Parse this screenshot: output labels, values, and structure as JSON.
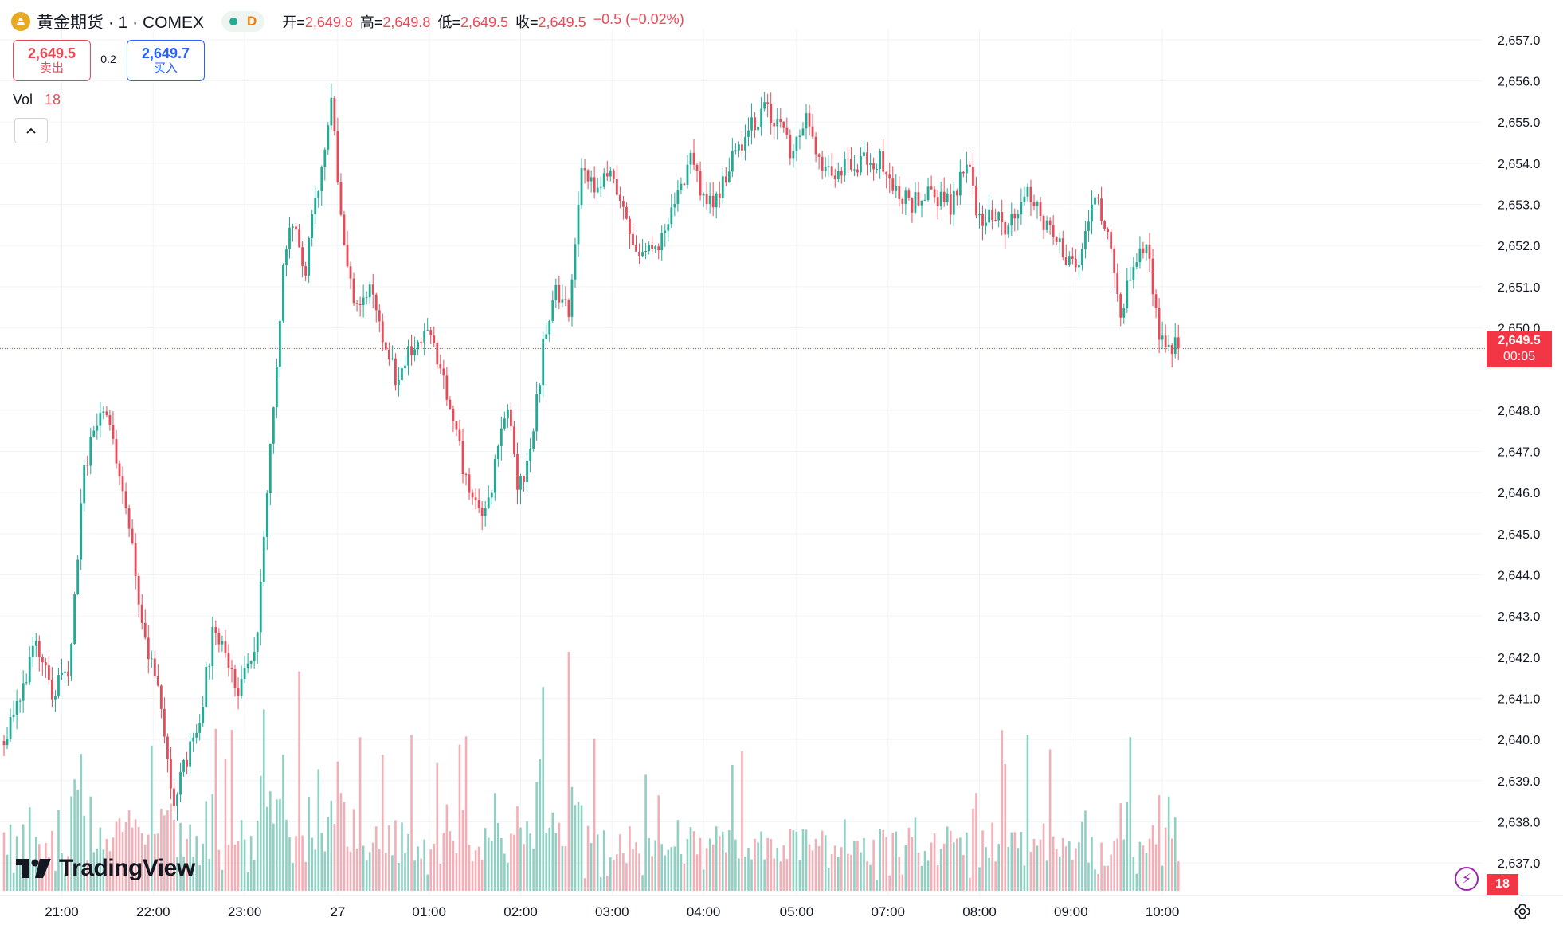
{
  "header": {
    "symbol_title": "黄金期货 · 1 · COMEX",
    "delay_badge": "D",
    "ohlc": [
      {
        "k": "开=",
        "v": "2,649.8"
      },
      {
        "k": "高=",
        "v": "2,649.8"
      },
      {
        "k": "低=",
        "v": "2,649.5"
      },
      {
        "k": "收=",
        "v": "2,649.5"
      }
    ],
    "change": "−0.5 (−0.02%)"
  },
  "trade": {
    "sell_price": "2,649.5",
    "sell_label": "卖出",
    "spread": "0.2",
    "buy_price": "2,649.7",
    "buy_label": "买入"
  },
  "volume": {
    "label": "Vol",
    "value": "18"
  },
  "logo": "TradingView",
  "last_price": {
    "price": "2,649.5",
    "countdown": "00:05"
  },
  "colors": {
    "up": "#22ab94",
    "down": "#e84a57",
    "volume_up": "#8fd0c3",
    "volume_down": "#f4aeb5",
    "grid": "#f0f3fa"
  },
  "chart_data": {
    "type": "candlestick",
    "title": "",
    "y_ticks": [
      "2,657.0",
      "2,656.0",
      "2,655.0",
      "2,654.0",
      "2,653.0",
      "2,652.0",
      "2,651.0",
      "2,650.0",
      "2,648.0",
      "2,647.0",
      "2,646.0",
      "2,645.0",
      "2,644.0",
      "2,643.0",
      "2,642.0",
      "2,641.0",
      "2,640.0",
      "2,639.0",
      "2,638.0",
      "2,637.0"
    ],
    "x_ticks": [
      "21:00",
      "22:00",
      "23:00",
      "27",
      "01:00",
      "02:00",
      "03:00",
      "04:00",
      "05:00",
      "07:00",
      "08:00",
      "09:00",
      "10:00"
    ],
    "ylim": [
      2636.75,
      2657.25
    ],
    "grid": true,
    "close_path": [
      [
        0,
        2640.0
      ],
      [
        4,
        2641.0
      ],
      [
        10,
        2642.2
      ],
      [
        15,
        2641.2
      ],
      [
        20,
        2641.5
      ],
      [
        25,
        2646.5
      ],
      [
        30,
        2648.2
      ],
      [
        34,
        2647.2
      ],
      [
        38,
        2645.5
      ],
      [
        44,
        2642.5
      ],
      [
        49,
        2640.8
      ],
      [
        53,
        2638.5
      ],
      [
        57,
        2639.5
      ],
      [
        61,
        2640.5
      ],
      [
        65,
        2642.5
      ],
      [
        69,
        2642.2
      ],
      [
        73,
        2641.2
      ],
      [
        79,
        2642.5
      ],
      [
        83,
        2647.0
      ],
      [
        87,
        2651.5
      ],
      [
        90,
        2652.5
      ],
      [
        94,
        2651.5
      ],
      [
        98,
        2653.5
      ],
      [
        102,
        2655.4
      ],
      [
        106,
        2652.0
      ],
      [
        110,
        2650.5
      ],
      [
        114,
        2651.0
      ],
      [
        118,
        2649.8
      ],
      [
        123,
        2648.5
      ],
      [
        127,
        2649.6
      ],
      [
        133,
        2649.7
      ],
      [
        138,
        2648.5
      ],
      [
        142,
        2647.0
      ],
      [
        146,
        2645.8
      ],
      [
        150,
        2645.5
      ],
      [
        154,
        2647.0
      ],
      [
        157,
        2648.0
      ],
      [
        160,
        2646.0
      ],
      [
        164,
        2647.0
      ],
      [
        168,
        2649.5
      ],
      [
        172,
        2651.0
      ],
      [
        176,
        2650.5
      ],
      [
        180,
        2654.0
      ],
      [
        184,
        2653.2
      ],
      [
        188,
        2653.8
      ],
      [
        192,
        2653.0
      ],
      [
        197,
        2652.0
      ],
      [
        203,
        2651.8
      ],
      [
        209,
        2653.0
      ],
      [
        214,
        2654.0
      ],
      [
        219,
        2653.0
      ],
      [
        224,
        2653.5
      ],
      [
        229,
        2654.4
      ],
      [
        234,
        2655.0
      ],
      [
        238,
        2655.3
      ],
      [
        242,
        2654.8
      ],
      [
        246,
        2654.2
      ],
      [
        250,
        2655.0
      ],
      [
        254,
        2654.0
      ],
      [
        259,
        2653.8
      ],
      [
        263,
        2654.0
      ],
      [
        268,
        2654.0
      ],
      [
        273,
        2654.1
      ],
      [
        277,
        2653.4
      ],
      [
        282,
        2653.0
      ],
      [
        286,
        2653.2
      ],
      [
        291,
        2653.2
      ],
      [
        295,
        2653.0
      ],
      [
        300,
        2654.1
      ],
      [
        304,
        2652.6
      ],
      [
        308,
        2652.8
      ],
      [
        312,
        2652.3
      ],
      [
        316,
        2653.0
      ],
      [
        320,
        2653.2
      ],
      [
        324,
        2652.5
      ],
      [
        328,
        2652.0
      ],
      [
        332,
        2651.6
      ],
      [
        336,
        2651.8
      ],
      [
        340,
        2653.2
      ],
      [
        344,
        2652.4
      ],
      [
        348,
        2650.5
      ],
      [
        352,
        2651.5
      ],
      [
        356,
        2652.0
      ],
      [
        360,
        2649.9
      ],
      [
        364,
        2649.5
      ],
      [
        366,
        2649.5
      ]
    ],
    "volume_scale": [
      0,
      220
    ],
    "volume_note": "per-minute volume histogram at bottom; peak near 02:30"
  }
}
